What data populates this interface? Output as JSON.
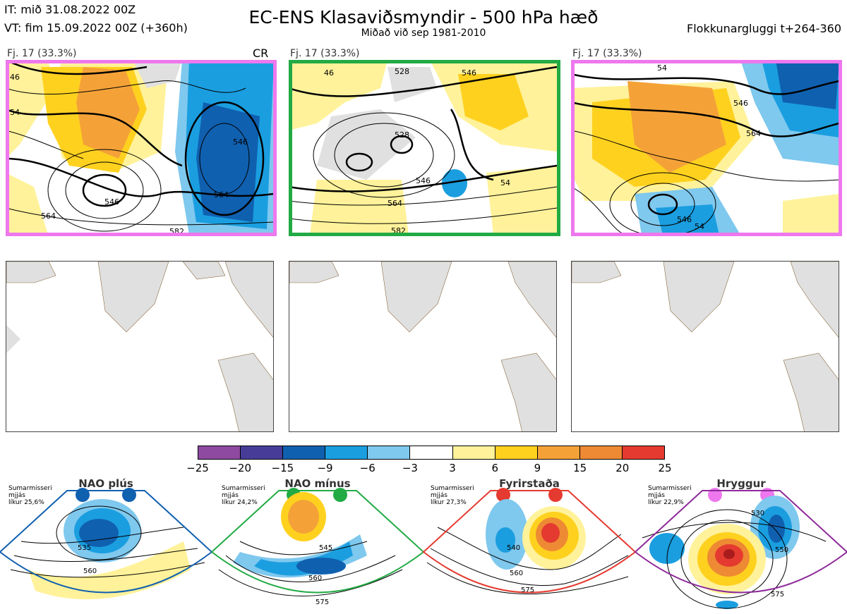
{
  "header": {
    "it_line": "IT: mið 31.08.2022 00Z",
    "vt_line": "VT: fim 15.09.2022 00Z  (+360h)",
    "title": "EC-ENS Klasaviðsmyndir - 500 hPa hæð",
    "subtitle": "Miðað við sep 1981-2010",
    "window": "Flokkunargluggi t+264-360"
  },
  "panels": [
    {
      "label": "Fj. 17 (33.3%)",
      "tag": "CR",
      "frame_color": "#ee77ee",
      "contour_labels": [
        "46",
        "54",
        "546",
        "546",
        "564",
        "564",
        "582"
      ]
    },
    {
      "label": "Fj. 17 (33.3%)",
      "tag": "",
      "frame_color": "#22aa44",
      "contour_labels": [
        "546",
        "528",
        "528",
        "546",
        "564",
        "54",
        "582",
        "46"
      ]
    },
    {
      "label": "Fj. 17 (33.3%)",
      "tag": "",
      "frame_color": "#ee77ee",
      "contour_labels": [
        "546",
        "564",
        "546",
        "54",
        "54"
      ]
    }
  ],
  "colorbar": {
    "ticks": [
      "−25",
      "−20",
      "−15",
      "−9",
      "−6",
      "−3",
      "3",
      "6",
      "9",
      "15",
      "20",
      "25"
    ],
    "colors": [
      "#8e4aa0",
      "#473d99",
      "#1060b0",
      "#1a9ee0",
      "#7fc8ee",
      "#ffffff",
      "#fff29a",
      "#ffd11f",
      "#f4a238",
      "#ee8a33",
      "#e53a30",
      "#a81c1c"
    ]
  },
  "regimes": [
    {
      "title": "NAO plús",
      "color": "#1060b0",
      "season": "Sumarmisseri",
      "smooth": "mjjás",
      "prob": "líkur 25,6%",
      "labels": [
        "535",
        "560"
      ]
    },
    {
      "title": "NAO mínus",
      "color": "#22aa44",
      "season": "Sumarmisseri",
      "smooth": "mjjás",
      "prob": "líkur 24,2%",
      "labels": [
        "545",
        "560",
        "575"
      ]
    },
    {
      "title": "Fyrirstaða",
      "color": "#e53a30",
      "season": "Sumarmisseri",
      "smooth": "mjjás",
      "prob": "líkur 27,3%",
      "labels": [
        "540",
        "560",
        "575"
      ]
    },
    {
      "title": "Hryggur",
      "color": "#ee77ee",
      "season": "Sumarmisseri",
      "smooth": "mjjás",
      "prob": "líkur 22,9%",
      "labels": [
        "530",
        "550",
        "575"
      ]
    }
  ]
}
